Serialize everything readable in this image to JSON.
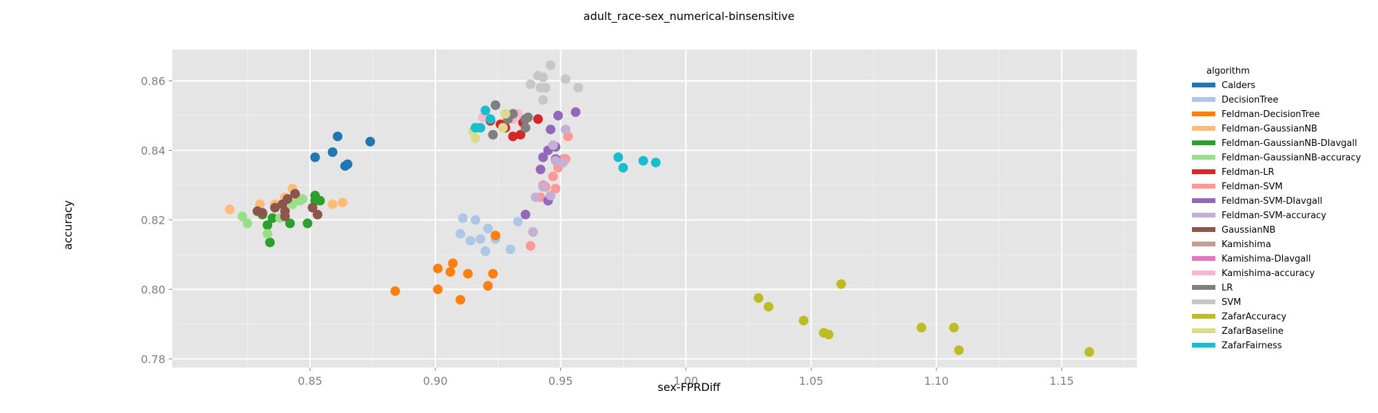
{
  "chart_data": {
    "type": "scatter",
    "title": "adult_race-sex_numerical-binsensitive",
    "xlabel": "sex-FPRDiff",
    "ylabel": "accuracy",
    "xlim": [
      0.795,
      1.18
    ],
    "ylim": [
      0.7775,
      0.869
    ],
    "x_ticks": [
      "0.85",
      "0.90",
      "0.95",
      "1.00",
      "1.05",
      "1.10",
      "1.15"
    ],
    "y_ticks": [
      "0.78",
      "0.80",
      "0.82",
      "0.84",
      "0.86"
    ],
    "grid": true,
    "legend_title": "algorithm",
    "legend_position": "right",
    "series": [
      {
        "name": "Calders",
        "color": "#1f77b4",
        "points": [
          [
            0.852,
            0.838
          ],
          [
            0.859,
            0.8395
          ],
          [
            0.861,
            0.844
          ],
          [
            0.864,
            0.8355
          ],
          [
            0.865,
            0.836
          ],
          [
            0.874,
            0.8425
          ]
        ]
      },
      {
        "name": "DecisionTree",
        "color": "#aec7e8",
        "points": [
          [
            0.91,
            0.816
          ],
          [
            0.911,
            0.8205
          ],
          [
            0.914,
            0.814
          ],
          [
            0.916,
            0.82
          ],
          [
            0.918,
            0.8145
          ],
          [
            0.92,
            0.811
          ],
          [
            0.921,
            0.8175
          ],
          [
            0.924,
            0.8145
          ],
          [
            0.93,
            0.8115
          ],
          [
            0.933,
            0.8195
          ]
        ]
      },
      {
        "name": "Feldman-DecisionTree",
        "color": "#ff7f0e",
        "points": [
          [
            0.884,
            0.7995
          ],
          [
            0.901,
            0.8
          ],
          [
            0.901,
            0.806
          ],
          [
            0.906,
            0.805
          ],
          [
            0.907,
            0.8075
          ],
          [
            0.91,
            0.797
          ],
          [
            0.913,
            0.8045
          ],
          [
            0.921,
            0.801
          ],
          [
            0.923,
            0.8045
          ],
          [
            0.924,
            0.8155
          ]
        ]
      },
      {
        "name": "Feldman-GaussianNB",
        "color": "#ffbb78",
        "points": [
          [
            0.818,
            0.823
          ],
          [
            0.83,
            0.8245
          ],
          [
            0.836,
            0.8245
          ],
          [
            0.84,
            0.8265
          ],
          [
            0.843,
            0.829
          ],
          [
            0.845,
            0.8265
          ],
          [
            0.859,
            0.8245
          ],
          [
            0.863,
            0.825
          ]
        ]
      },
      {
        "name": "Feldman-GaussianNB-DIavgall",
        "color": "#2ca02c",
        "points": [
          [
            0.831,
            0.8215
          ],
          [
            0.833,
            0.8185
          ],
          [
            0.834,
            0.8135
          ],
          [
            0.835,
            0.8205
          ],
          [
            0.842,
            0.819
          ],
          [
            0.849,
            0.819
          ],
          [
            0.852,
            0.827
          ],
          [
            0.852,
            0.8255
          ],
          [
            0.854,
            0.8255
          ]
        ]
      },
      {
        "name": "Feldman-GaussianNB-accuracy",
        "color": "#98df8a",
        "points": [
          [
            0.823,
            0.821
          ],
          [
            0.825,
            0.819
          ],
          [
            0.833,
            0.816
          ],
          [
            0.838,
            0.8205
          ],
          [
            0.846,
            0.8255
          ],
          [
            0.847,
            0.826
          ],
          [
            0.843,
            0.8245
          ]
        ]
      },
      {
        "name": "Feldman-LR",
        "color": "#d62728",
        "points": [
          [
            0.922,
            0.8485
          ],
          [
            0.926,
            0.8475
          ],
          [
            0.931,
            0.844
          ],
          [
            0.934,
            0.8445
          ],
          [
            0.935,
            0.848
          ],
          [
            0.941,
            0.849
          ],
          [
            0.928,
            0.8465
          ]
        ]
      },
      {
        "name": "Feldman-SVM",
        "color": "#ff9896",
        "points": [
          [
            0.938,
            0.8125
          ],
          [
            0.942,
            0.8265
          ],
          [
            0.943,
            0.83
          ],
          [
            0.944,
            0.8295
          ],
          [
            0.947,
            0.8325
          ],
          [
            0.948,
            0.829
          ],
          [
            0.949,
            0.835
          ],
          [
            0.951,
            0.8375
          ],
          [
            0.952,
            0.8375
          ],
          [
            0.953,
            0.844
          ],
          [
            0.92,
            0.85
          ]
        ]
      },
      {
        "name": "Feldman-SVM-DIavgall",
        "color": "#9467bd",
        "points": [
          [
            0.936,
            0.8215
          ],
          [
            0.942,
            0.8345
          ],
          [
            0.943,
            0.838
          ],
          [
            0.945,
            0.84
          ],
          [
            0.945,
            0.8255
          ],
          [
            0.946,
            0.846
          ],
          [
            0.948,
            0.8375
          ],
          [
            0.949,
            0.85
          ],
          [
            0.956,
            0.851
          ],
          [
            0.948,
            0.841
          ]
        ]
      },
      {
        "name": "Feldman-SVM-accuracy",
        "color": "#c5b0d5",
        "points": [
          [
            0.939,
            0.8165
          ],
          [
            0.94,
            0.8265
          ],
          [
            0.943,
            0.8295
          ],
          [
            0.946,
            0.827
          ],
          [
            0.947,
            0.8415
          ],
          [
            0.948,
            0.837
          ],
          [
            0.951,
            0.8365
          ],
          [
            0.952,
            0.846
          ]
        ]
      },
      {
        "name": "GaussianNB",
        "color": "#8c564b",
        "points": [
          [
            0.829,
            0.8225
          ],
          [
            0.831,
            0.822
          ],
          [
            0.836,
            0.8235
          ],
          [
            0.839,
            0.8245
          ],
          [
            0.84,
            0.8225
          ],
          [
            0.84,
            0.821
          ],
          [
            0.841,
            0.826
          ],
          [
            0.844,
            0.8275
          ],
          [
            0.851,
            0.8235
          ],
          [
            0.853,
            0.8215
          ]
        ]
      },
      {
        "name": "Kamishima",
        "color": "#c49c94",
        "points": []
      },
      {
        "name": "Kamishima-DIavgall",
        "color": "#e377c2",
        "points": []
      },
      {
        "name": "Kamishima-accuracy",
        "color": "#f7b6d2",
        "points": [
          [
            0.919,
            0.8495
          ],
          [
            0.928,
            0.8505
          ],
          [
            0.931,
            0.849
          ],
          [
            0.933,
            0.8505
          ]
        ]
      },
      {
        "name": "LR",
        "color": "#7f7f7f",
        "points": [
          [
            0.924,
            0.853
          ],
          [
            0.923,
            0.8445
          ],
          [
            0.929,
            0.849
          ],
          [
            0.931,
            0.8505
          ],
          [
            0.936,
            0.849
          ],
          [
            0.936,
            0.8465
          ],
          [
            0.937,
            0.8495
          ]
        ]
      },
      {
        "name": "SVM",
        "color": "#c7c7c7",
        "points": [
          [
            0.938,
            0.859
          ],
          [
            0.941,
            0.8615
          ],
          [
            0.942,
            0.858
          ],
          [
            0.943,
            0.861
          ],
          [
            0.943,
            0.8545
          ],
          [
            0.944,
            0.858
          ],
          [
            0.946,
            0.8645
          ],
          [
            0.952,
            0.8605
          ],
          [
            0.957,
            0.858
          ]
        ]
      },
      {
        "name": "ZafarAccuracy",
        "color": "#bcbd22",
        "points": [
          [
            1.029,
            0.7975
          ],
          [
            1.033,
            0.795
          ],
          [
            1.047,
            0.791
          ],
          [
            1.055,
            0.7875
          ],
          [
            1.057,
            0.787
          ],
          [
            1.062,
            0.8015
          ],
          [
            1.094,
            0.789
          ],
          [
            1.107,
            0.789
          ],
          [
            1.109,
            0.7825
          ],
          [
            1.161,
            0.782
          ]
        ]
      },
      {
        "name": "ZafarBaseline",
        "color": "#dbdb8d",
        "points": [
          [
            0.915,
            0.8455
          ],
          [
            0.916,
            0.8435
          ],
          [
            0.917,
            0.8465
          ],
          [
            0.928,
            0.8505
          ],
          [
            0.927,
            0.8465
          ]
        ]
      },
      {
        "name": "ZafarFairness",
        "color": "#17becf",
        "points": [
          [
            0.916,
            0.8465
          ],
          [
            0.918,
            0.8465
          ],
          [
            0.92,
            0.8515
          ],
          [
            0.922,
            0.849
          ],
          [
            0.973,
            0.838
          ],
          [
            0.975,
            0.835
          ],
          [
            0.983,
            0.837
          ],
          [
            0.988,
            0.8365
          ]
        ]
      }
    ]
  }
}
